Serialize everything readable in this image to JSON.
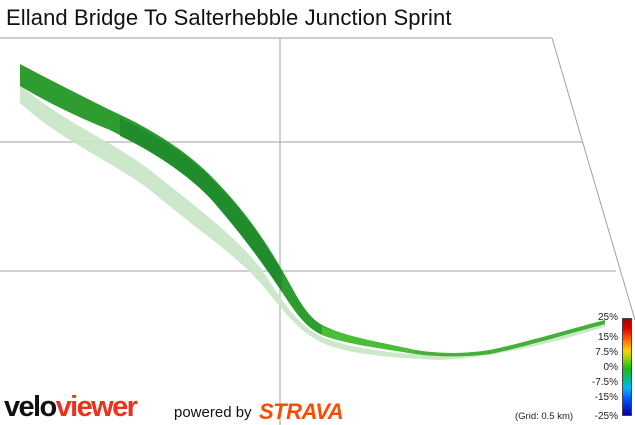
{
  "title": "Elland Bridge To Salterhebble Junction Sprint",
  "legend": {
    "labels": [
      "25%",
      "15%",
      "7.5%",
      "0%",
      "-7.5%",
      "-15%",
      "-25%"
    ]
  },
  "grid_note": "(Grid: 0.5 km)",
  "branding": {
    "logo_part1": "velo",
    "logo_part2": "viewer",
    "powered_by": "powered by",
    "strava": "STRAVA"
  },
  "colors": {
    "ribbon_top": "#2e9c2e",
    "ribbon_shadow": "#c9e6c6",
    "grid": "#a0a0a0",
    "velo_accent": "#e8341c",
    "strava": "#fc4c02"
  }
}
